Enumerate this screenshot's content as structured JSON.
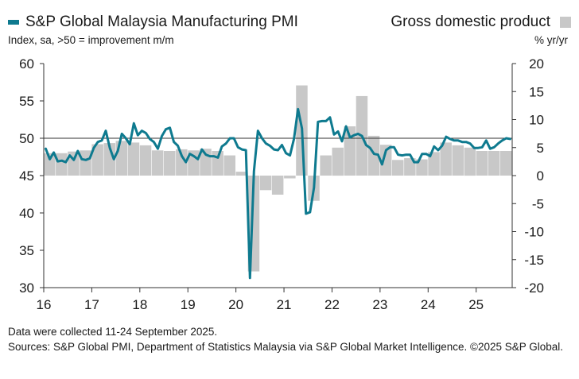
{
  "chart_data": {
    "type": "line+bar",
    "title": "S&P Global Malaysia Manufacturing PMI",
    "legend": [
      {
        "name": "S&P Global Malaysia Manufacturing PMI",
        "kind": "line",
        "color": "#0e7a8f"
      },
      {
        "name": "Gross domestic product",
        "kind": "bar",
        "color": "#c8c8c8"
      }
    ],
    "ylabel_left": "Index, sa, >50 = improvement m/m",
    "ylabel_right": "% yr/yr",
    "ylim_left": [
      30,
      60
    ],
    "ylim_right": [
      -20,
      20
    ],
    "yticks_left": [
      "60",
      "55",
      "50",
      "45",
      "40",
      "35",
      "30"
    ],
    "yticks_right": [
      "20",
      "15",
      "10",
      "5",
      "0",
      "-5",
      "-10",
      "-15",
      "-20"
    ],
    "x_start_year": 2016,
    "x_end": 2025.75,
    "xticks": [
      "16",
      "17",
      "18",
      "19",
      "20",
      "21",
      "22",
      "23",
      "24",
      "25"
    ],
    "reference_line_left": 50,
    "pmi": {
      "name": "S&P Global Malaysia Manufacturing PMI",
      "start": "2016-01",
      "values": [
        48.6,
        47.2,
        48.1,
        46.9,
        47.0,
        46.8,
        47.7,
        47.1,
        48.3,
        47.2,
        47.1,
        47.3,
        48.7,
        49.5,
        49.7,
        51.0,
        48.7,
        47.2,
        48.3,
        50.6,
        50.0,
        49.2,
        52.0,
        50.4,
        51.0,
        50.7,
        49.9,
        49.5,
        48.6,
        50.3,
        51.2,
        51.4,
        49.5,
        49.0,
        47.6,
        46.8,
        47.9,
        47.6,
        47.2,
        48.5,
        47.8,
        47.6,
        47.6,
        47.4,
        48.9,
        49.3,
        50.0,
        50.0,
        48.8,
        48.5,
        48.4,
        31.3,
        45.6,
        51.0,
        50.0,
        49.3,
        49.0,
        48.5,
        48.4,
        49.1,
        48.0,
        47.7,
        49.9,
        53.9,
        51.3,
        39.9,
        40.1,
        43.4,
        52.2,
        52.3,
        52.3,
        52.8,
        50.5,
        50.9,
        49.6,
        51.6,
        50.1,
        50.4,
        50.6,
        50.3,
        49.1,
        48.7,
        47.9,
        47.8,
        46.5,
        48.4,
        48.8,
        48.8,
        47.8,
        47.7,
        47.8,
        47.8,
        46.8,
        46.8,
        47.9,
        47.9,
        47.6,
        48.9,
        48.4,
        49.0,
        50.2,
        49.9,
        49.7,
        49.7,
        49.5,
        49.5,
        49.3,
        48.7,
        48.7,
        48.8,
        49.7,
        48.6,
        48.8,
        49.3,
        49.7,
        50.0,
        49.9
      ]
    },
    "gdp": {
      "name": "Gross domestic product",
      "start_quarter": "2016-Q1",
      "values": [
        4.0,
        4.0,
        4.3,
        4.5,
        5.6,
        5.8,
        6.2,
        5.9,
        5.4,
        4.5,
        4.4,
        4.7,
        4.5,
        4.8,
        4.4,
        3.6,
        0.7,
        -17.1,
        -2.6,
        -3.4,
        -0.5,
        16.1,
        -4.5,
        3.6,
        5.0,
        8.8,
        14.2,
        7.1,
        5.5,
        2.8,
        3.1,
        2.9,
        4.2,
        5.9,
        5.4,
        5.0,
        4.4,
        4.4,
        4.4
      ]
    }
  },
  "footer": {
    "line1": "Data were collected 11-24 September 2025.",
    "line2": "Sources: S&P Global PMI, Department of Statistics Malaysia via S&P Global Market Intelligence. ©2025 S&P Global."
  }
}
